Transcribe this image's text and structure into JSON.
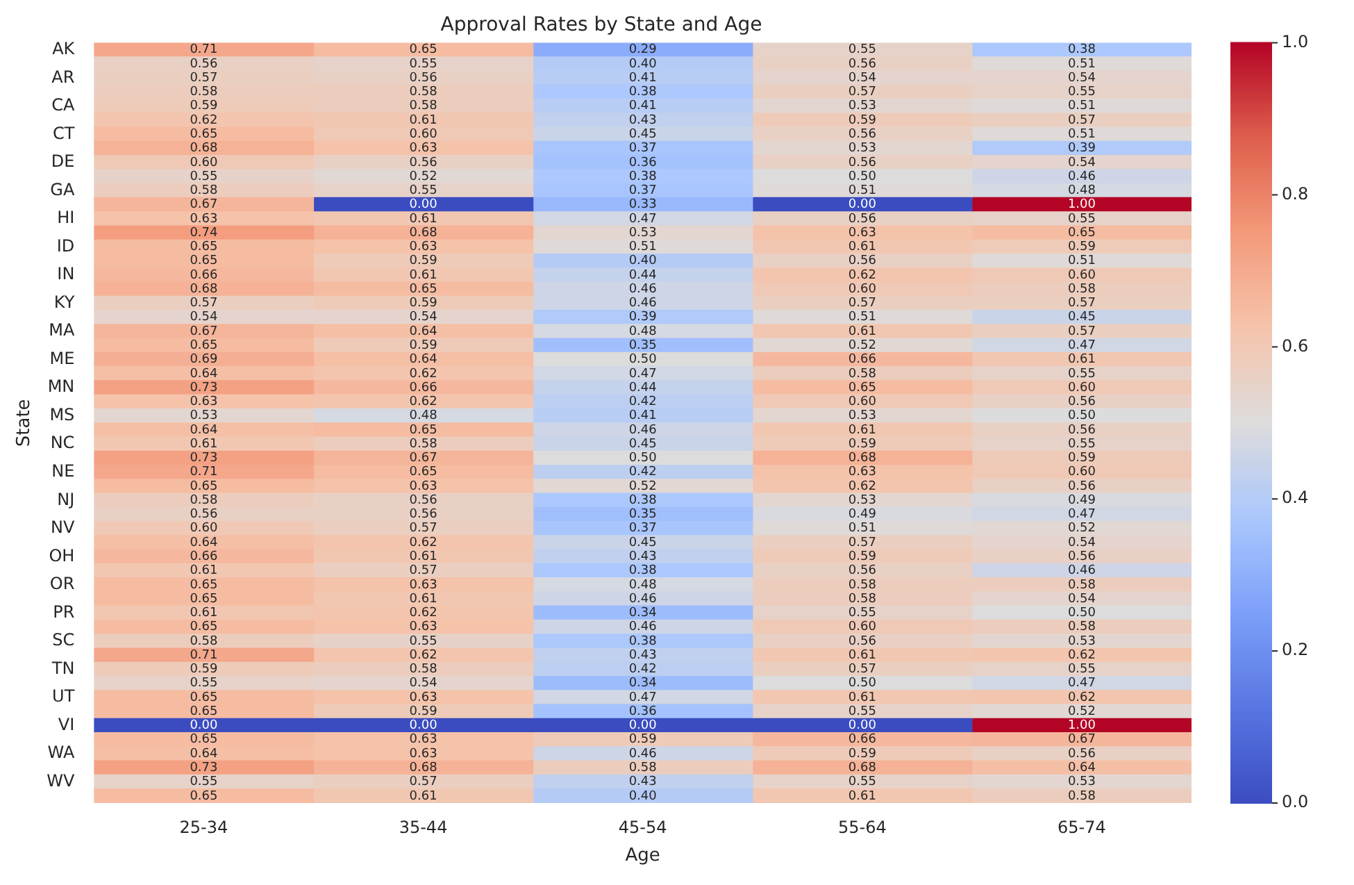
{
  "chart_data": {
    "type": "heatmap",
    "title": "Approval Rates by State and Age",
    "xlabel": "Age",
    "ylabel": "State",
    "categories": [
      "25-34",
      "35-44",
      "45-54",
      "55-64",
      "65-74"
    ],
    "y_categories": [
      "AK",
      null,
      "AR",
      null,
      "CA",
      null,
      "CT",
      null,
      "DE",
      null,
      "GA",
      null,
      "HI",
      null,
      "ID",
      null,
      "IN",
      null,
      "KY",
      null,
      "MA",
      null,
      "ME",
      null,
      "MN",
      null,
      "MS",
      null,
      "NC",
      null,
      "NE",
      null,
      "NJ",
      null,
      "NV",
      null,
      "OH",
      null,
      "OR",
      null,
      "PR",
      null,
      "SC",
      null,
      "TN",
      null,
      "UT",
      null,
      "VI",
      null,
      "WA",
      null,
      "WV",
      null
    ],
    "cells": [
      [
        0.71,
        0.65,
        0.29,
        0.55,
        0.38
      ],
      [
        0.56,
        0.55,
        0.4,
        0.56,
        0.51
      ],
      [
        0.57,
        0.56,
        0.41,
        0.54,
        0.54
      ],
      [
        0.58,
        0.58,
        0.38,
        0.57,
        0.55
      ],
      [
        0.59,
        0.58,
        0.41,
        0.53,
        0.51
      ],
      [
        0.62,
        0.61,
        0.43,
        0.59,
        0.57
      ],
      [
        0.65,
        0.6,
        0.45,
        0.56,
        0.51
      ],
      [
        0.68,
        0.63,
        0.37,
        0.53,
        0.39
      ],
      [
        0.6,
        0.56,
        0.36,
        0.56,
        0.54
      ],
      [
        0.55,
        0.52,
        0.38,
        0.5,
        0.46
      ],
      [
        0.58,
        0.55,
        0.37,
        0.51,
        0.48
      ],
      [
        0.67,
        0.0,
        0.33,
        0.0,
        1.0
      ],
      [
        0.63,
        0.61,
        0.47,
        0.56,
        0.55
      ],
      [
        0.74,
        0.68,
        0.53,
        0.63,
        0.65
      ],
      [
        0.65,
        0.63,
        0.51,
        0.61,
        0.59
      ],
      [
        0.65,
        0.59,
        0.4,
        0.56,
        0.51
      ],
      [
        0.66,
        0.61,
        0.44,
        0.62,
        0.6
      ],
      [
        0.68,
        0.65,
        0.46,
        0.6,
        0.58
      ],
      [
        0.57,
        0.59,
        0.46,
        0.57,
        0.57
      ],
      [
        0.54,
        0.54,
        0.39,
        0.51,
        0.45
      ],
      [
        0.67,
        0.64,
        0.48,
        0.61,
        0.57
      ],
      [
        0.65,
        0.59,
        0.35,
        0.52,
        0.47
      ],
      [
        0.69,
        0.64,
        0.5,
        0.66,
        0.61
      ],
      [
        0.64,
        0.62,
        0.47,
        0.58,
        0.55
      ],
      [
        0.73,
        0.66,
        0.44,
        0.65,
        0.6
      ],
      [
        0.63,
        0.62,
        0.42,
        0.6,
        0.56
      ],
      [
        0.53,
        0.48,
        0.41,
        0.53,
        0.5
      ],
      [
        0.64,
        0.65,
        0.46,
        0.61,
        0.56
      ],
      [
        0.61,
        0.58,
        0.45,
        0.59,
        0.55
      ],
      [
        0.73,
        0.67,
        0.5,
        0.68,
        0.59
      ],
      [
        0.71,
        0.65,
        0.42,
        0.63,
        0.6
      ],
      [
        0.65,
        0.63,
        0.52,
        0.62,
        0.56
      ],
      [
        0.58,
        0.56,
        0.38,
        0.53,
        0.49
      ],
      [
        0.56,
        0.56,
        0.35,
        0.49,
        0.47
      ],
      [
        0.6,
        0.57,
        0.37,
        0.51,
        0.52
      ],
      [
        0.64,
        0.62,
        0.45,
        0.57,
        0.54
      ],
      [
        0.66,
        0.61,
        0.43,
        0.59,
        0.56
      ],
      [
        0.61,
        0.57,
        0.38,
        0.56,
        0.46
      ],
      [
        0.65,
        0.63,
        0.48,
        0.58,
        0.58
      ],
      [
        0.65,
        0.61,
        0.46,
        0.58,
        0.54
      ],
      [
        0.61,
        0.62,
        0.34,
        0.55,
        0.5
      ],
      [
        0.65,
        0.63,
        0.46,
        0.6,
        0.58
      ],
      [
        0.58,
        0.55,
        0.38,
        0.56,
        0.53
      ],
      [
        0.71,
        0.62,
        0.43,
        0.61,
        0.62
      ],
      [
        0.59,
        0.58,
        0.42,
        0.57,
        0.55
      ],
      [
        0.55,
        0.54,
        0.34,
        0.5,
        0.47
      ],
      [
        0.65,
        0.63,
        0.47,
        0.61,
        0.62
      ],
      [
        0.65,
        0.59,
        0.36,
        0.55,
        0.52
      ],
      [
        0.0,
        0.0,
        0.0,
        0.0,
        1.0
      ],
      [
        0.65,
        0.63,
        0.59,
        0.66,
        0.67
      ],
      [
        0.64,
        0.63,
        0.46,
        0.59,
        0.56
      ],
      [
        0.73,
        0.68,
        0.58,
        0.68,
        0.64
      ],
      [
        0.55,
        0.57,
        0.43,
        0.55,
        0.53
      ],
      [
        0.65,
        0.61,
        0.4,
        0.61,
        0.58
      ]
    ],
    "cell_labels": [
      [
        "0.71",
        "0.65",
        "0.29",
        "0.55",
        "0.38"
      ],
      [
        "0.56",
        "0.55",
        "0.40",
        "0.56",
        "0.51"
      ],
      [
        "0.57",
        "0.56",
        "0.41",
        "0.54",
        "0.54"
      ],
      [
        "0.58",
        "0.58",
        "0.38",
        "0.57",
        "0.55"
      ],
      [
        "0.59",
        "0.58",
        "0.41",
        "0.53",
        "0.51"
      ],
      [
        "0.62",
        "0.61",
        "0.43",
        "0.59",
        "0.57"
      ],
      [
        "0.65",
        "0.60",
        "0.45",
        "0.56",
        "0.51"
      ],
      [
        "0.68",
        "0.63",
        "0.37",
        "0.53",
        "0.39"
      ],
      [
        "0.60",
        "0.56",
        "0.36",
        "0.56",
        "0.54"
      ],
      [
        "0.55",
        "0.52",
        "0.38",
        "0.50",
        "0.46"
      ],
      [
        "0.58",
        "0.55",
        "0.37",
        "0.51",
        "0.48"
      ],
      [
        "0.67",
        "0.00",
        "0.33",
        "0.00",
        "1.00"
      ],
      [
        "0.63",
        "0.61",
        "0.47",
        "0.56",
        "0.55"
      ],
      [
        "0.74",
        "0.68",
        "0.53",
        "0.63",
        "0.65"
      ],
      [
        "0.65",
        "0.63",
        "0.51",
        "0.61",
        "0.59"
      ],
      [
        "0.65",
        "0.59",
        "0.40",
        "0.56",
        "0.51"
      ],
      [
        "0.66",
        "0.61",
        "0.44",
        "0.62",
        "0.60"
      ],
      [
        "0.68",
        "0.65",
        "0.46",
        "0.60",
        "0.58"
      ],
      [
        "0.57",
        "0.59",
        "0.46",
        "0.57",
        "0.57"
      ],
      [
        "0.54",
        "0.54",
        "0.39",
        "0.51",
        "0.45"
      ],
      [
        "0.67",
        "0.64",
        "0.48",
        "0.61",
        "0.57"
      ],
      [
        "0.65",
        "0.59",
        "0.35",
        "0.52",
        "0.47"
      ],
      [
        "0.69",
        "0.64",
        "0.50",
        "0.66",
        "0.61"
      ],
      [
        "0.64",
        "0.62",
        "0.47",
        "0.58",
        "0.55"
      ],
      [
        "0.73",
        "0.66",
        "0.44",
        "0.65",
        "0.60"
      ],
      [
        "0.63",
        "0.62",
        "0.42",
        "0.60",
        "0.56"
      ],
      [
        "0.53",
        "0.48",
        "0.41",
        "0.53",
        "0.50"
      ],
      [
        "0.64",
        "0.65",
        "0.46",
        "0.61",
        "0.56"
      ],
      [
        "0.61",
        "0.58",
        "0.45",
        "0.59",
        "0.55"
      ],
      [
        "0.73",
        "0.67",
        "0.50",
        "0.68",
        "0.59"
      ],
      [
        "0.71",
        "0.65",
        "0.42",
        "0.63",
        "0.60"
      ],
      [
        "0.65",
        "0.63",
        "0.52",
        "0.62",
        "0.56"
      ],
      [
        "0.58",
        "0.56",
        "0.38",
        "0.53",
        "0.49"
      ],
      [
        "0.56",
        "0.56",
        "0.35",
        "0.49",
        "0.47"
      ],
      [
        "0.60",
        "0.57",
        "0.37",
        "0.51",
        "0.52"
      ],
      [
        "0.64",
        "0.62",
        "0.45",
        "0.57",
        "0.54"
      ],
      [
        "0.66",
        "0.61",
        "0.43",
        "0.59",
        "0.56"
      ],
      [
        "0.61",
        "0.57",
        "0.38",
        "0.56",
        "0.46"
      ],
      [
        "0.65",
        "0.63",
        "0.48",
        "0.58",
        "0.58"
      ],
      [
        "0.65",
        "0.61",
        "0.46",
        "0.58",
        "0.54"
      ],
      [
        "0.61",
        "0.62",
        "0.34",
        "0.55",
        "0.50"
      ],
      [
        "0.65",
        "0.63",
        "0.46",
        "0.60",
        "0.58"
      ],
      [
        "0.58",
        "0.55",
        "0.38",
        "0.56",
        "0.53"
      ],
      [
        "0.71",
        "0.62",
        "0.43",
        "0.61",
        "0.62"
      ],
      [
        "0.59",
        "0.58",
        "0.42",
        "0.57",
        "0.55"
      ],
      [
        "0.55",
        "0.54",
        "0.34",
        "0.50",
        "0.47"
      ],
      [
        "0.65",
        "0.63",
        "0.47",
        "0.61",
        "0.62"
      ],
      [
        "0.65",
        "0.59",
        "0.36",
        "0.55",
        "0.52"
      ],
      [
        "0.00",
        "0.00",
        "0.00",
        "0.00",
        "1.00"
      ],
      [
        "0.65",
        "0.63",
        "0.59",
        "0.66",
        "0.67"
      ],
      [
        "0.64",
        "0.63",
        "0.46",
        "0.59",
        "0.56"
      ],
      [
        "0.73",
        "0.68",
        "0.58",
        "0.68",
        "0.64"
      ],
      [
        "0.55",
        "0.57",
        "0.43",
        "0.55",
        "0.53"
      ],
      [
        "0.65",
        "0.61",
        "0.40",
        "0.61",
        "0.58"
      ]
    ],
    "clim": [
      0,
      1
    ],
    "cticks": [
      {
        "value": 0,
        "label": "0.0"
      },
      {
        "value": 0.2,
        "label": "0.2"
      },
      {
        "value": 0.4,
        "label": "0.4"
      },
      {
        "value": 0.6,
        "label": "0.6"
      },
      {
        "value": 0.8,
        "label": "0.8"
      },
      {
        "value": 1,
        "label": "1.0"
      }
    ]
  }
}
